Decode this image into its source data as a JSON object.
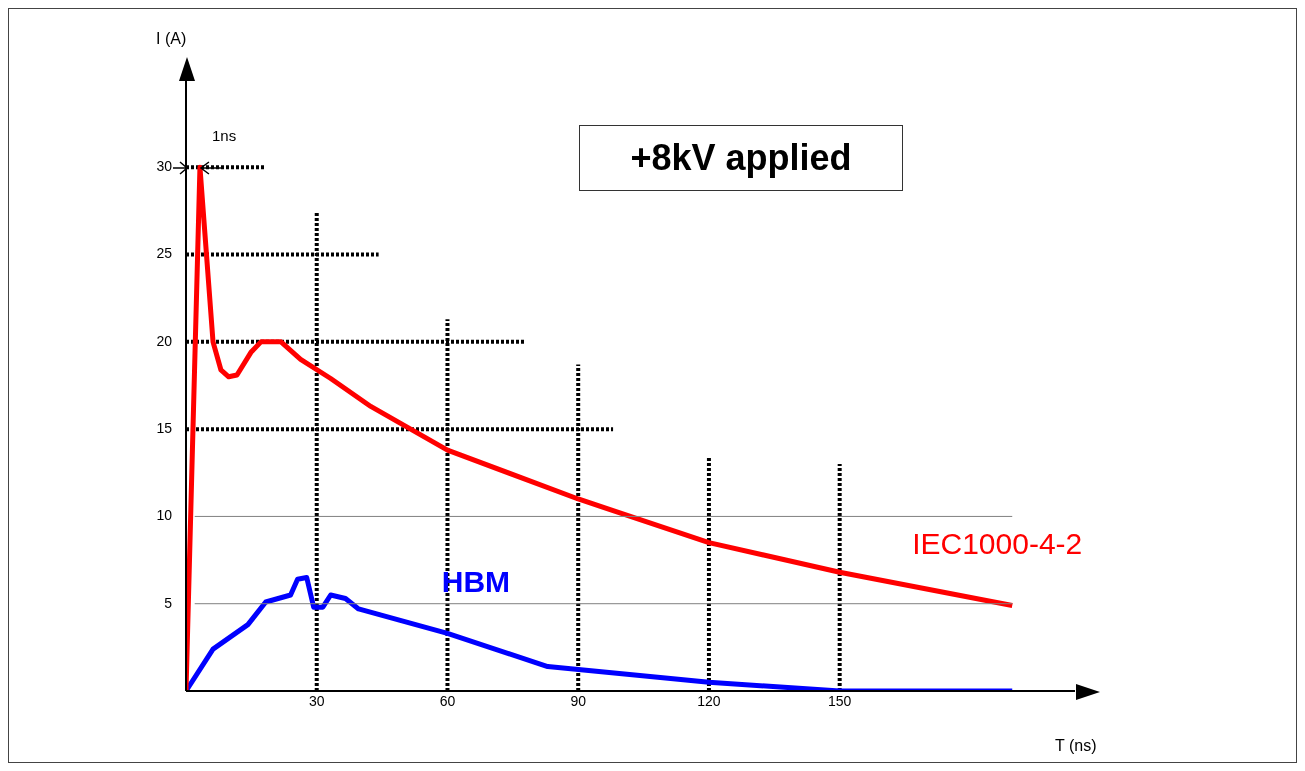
{
  "chart_data": {
    "type": "line",
    "title": "+8kV applied",
    "xlabel": "T (ns)",
    "ylabel": "I (A)",
    "annotations": [
      {
        "text": "1ns",
        "x": 3.2,
        "y": 30
      }
    ],
    "xlim": [
      0,
      204
    ],
    "ylim": [
      0,
      35
    ],
    "xticks": [
      30,
      60,
      90,
      120,
      150
    ],
    "yticks": [
      5,
      10,
      15,
      20,
      25,
      30
    ],
    "grid": false,
    "legend": false,
    "series": [
      {
        "name": "IEC1000-4-2",
        "color": "#ff0000",
        "line_style": "solid",
        "x": [
          0,
          3.2,
          6.2,
          8,
          9.8,
          11.7,
          14.9,
          17.2,
          21.8,
          26.3,
          33.2,
          42.4,
          60,
          90,
          120,
          150,
          189.6
        ],
        "values": [
          0,
          30,
          20,
          18.4,
          18,
          18.1,
          19.4,
          20,
          20,
          19,
          17.9,
          16.3,
          13.8,
          11,
          8.5,
          6.8,
          4.9
        ]
      },
      {
        "name": "HBM",
        "color": "#0000ff",
        "line_style": "solid",
        "x": [
          0,
          6.2,
          14.2,
          18.3,
          24,
          25.6,
          27.7,
          29.3,
          31.4,
          33.2,
          36.6,
          39.6,
          52.7,
          60,
          83,
          120,
          150,
          189.6
        ],
        "values": [
          0,
          2.4,
          3.8,
          5.1,
          5.5,
          6.4,
          6.5,
          4.8,
          4.8,
          5.5,
          5.3,
          4.7,
          3.8,
          3.3,
          1.4,
          0.5,
          0,
          0
        ]
      },
      {
        "color": "#000000",
        "line_style": "dotted",
        "x": [
          0,
          18.3
        ],
        "values": [
          30,
          30
        ]
      },
      {
        "color": "#000000",
        "line_style": "dotted",
        "x": [
          0,
          44.2
        ],
        "values": [
          25,
          25
        ]
      },
      {
        "color": "#000000",
        "line_style": "dotted",
        "x": [
          0,
          77.9
        ],
        "values": [
          20,
          20
        ]
      },
      {
        "color": "#000000",
        "line_style": "dotted",
        "x": [
          0,
          98
        ],
        "values": [
          15,
          15
        ]
      },
      {
        "color": "#000000",
        "line_style": "dotted",
        "x": [
          30,
          30
        ],
        "values": [
          0,
          27.5
        ]
      },
      {
        "color": "#000000",
        "line_style": "dotted",
        "x": [
          60,
          60
        ],
        "values": [
          0,
          21.3
        ]
      },
      {
        "color": "#000000",
        "line_style": "dotted",
        "x": [
          90,
          90
        ],
        "values": [
          0,
          18.7
        ]
      },
      {
        "color": "#000000",
        "line_style": "dotted",
        "x": [
          120,
          120
        ],
        "values": [
          0,
          13.4
        ]
      },
      {
        "color": "#000000",
        "line_style": "dotted",
        "x": [
          150,
          150
        ],
        "values": [
          0,
          13
        ]
      },
      {
        "color": "#808080",
        "line_style": "solid",
        "x": [
          2,
          189.6
        ],
        "values": [
          10,
          10
        ]
      },
      {
        "color": "#808080",
        "line_style": "solid",
        "x": [
          2,
          189.6
        ],
        "values": [
          5,
          5
        ]
      }
    ]
  }
}
